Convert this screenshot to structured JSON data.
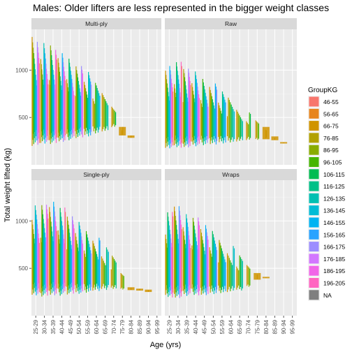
{
  "chart_data": {
    "type": "violin",
    "title": "Males: Older lifters are less represented in the bigger weight classes",
    "xlabel": "Age (yrs)",
    "ylabel": "Total weight lifted (kg)",
    "ylim": [
      0,
      1430
    ],
    "yticks": [
      500,
      1000
    ],
    "categories": [
      "25-29",
      "30-34",
      "35-39",
      "40-44",
      "45-49",
      "50-54",
      "55-59",
      "60-64",
      "65-69",
      "70-74",
      "75-79",
      "80-84",
      "85-89",
      "90-94",
      "95-99"
    ],
    "panels": [
      {
        "name": "Multi-ply",
        "groups": [
          {
            "age": "25-29",
            "min": 200,
            "max": 1350
          },
          {
            "age": "30-34",
            "min": 210,
            "max": 1310
          },
          {
            "age": "35-39",
            "min": 220,
            "max": 1260
          },
          {
            "age": "40-44",
            "min": 230,
            "max": 1200
          },
          {
            "age": "45-49",
            "min": 260,
            "max": 1120
          },
          {
            "age": "50-54",
            "min": 280,
            "max": 1060
          },
          {
            "age": "55-59",
            "min": 300,
            "max": 980
          },
          {
            "age": "60-64",
            "min": 330,
            "max": 880
          },
          {
            "age": "65-69",
            "min": 350,
            "max": 780
          },
          {
            "age": "70-74",
            "min": 390,
            "max": 680
          },
          {
            "age": "75-79",
            "min": 310,
            "max": 400
          },
          {
            "age": "80-84",
            "min": 285,
            "max": 310
          }
        ]
      },
      {
        "name": "Raw",
        "groups": [
          {
            "age": "25-29",
            "min": 170,
            "max": 1080
          },
          {
            "age": "30-34",
            "min": 180,
            "max": 1100
          },
          {
            "age": "35-39",
            "min": 180,
            "max": 1050
          },
          {
            "age": "40-44",
            "min": 190,
            "max": 1000
          },
          {
            "age": "45-49",
            "min": 200,
            "max": 940
          },
          {
            "age": "50-54",
            "min": 210,
            "max": 870
          },
          {
            "age": "55-59",
            "min": 220,
            "max": 800
          },
          {
            "age": "60-64",
            "min": 230,
            "max": 720
          },
          {
            "age": "65-69",
            "min": 240,
            "max": 640
          },
          {
            "age": "70-74",
            "min": 250,
            "max": 560
          },
          {
            "age": "75-79",
            "min": 260,
            "max": 480
          },
          {
            "age": "80-84",
            "min": 270,
            "max": 400
          },
          {
            "age": "85-89",
            "min": 260,
            "max": 300
          },
          {
            "age": "90-94",
            "min": 225,
            "max": 240
          }
        ]
      },
      {
        "name": "Single-ply",
        "groups": [
          {
            "age": "25-29",
            "min": 200,
            "max": 1200
          },
          {
            "age": "30-34",
            "min": 200,
            "max": 1180
          },
          {
            "age": "35-39",
            "min": 200,
            "max": 1240
          },
          {
            "age": "40-44",
            "min": 210,
            "max": 1150
          },
          {
            "age": "45-49",
            "min": 220,
            "max": 1080
          },
          {
            "age": "50-54",
            "min": 230,
            "max": 1000
          },
          {
            "age": "55-59",
            "min": 240,
            "max": 920
          },
          {
            "age": "60-64",
            "min": 260,
            "max": 830
          },
          {
            "age": "65-69",
            "min": 270,
            "max": 740
          },
          {
            "age": "70-74",
            "min": 280,
            "max": 640
          },
          {
            "age": "75-79",
            "min": 270,
            "max": 480
          },
          {
            "age": "80-84",
            "min": 270,
            "max": 300
          },
          {
            "age": "85-89",
            "min": 265,
            "max": 285
          },
          {
            "age": "90-94",
            "min": 250,
            "max": 275
          }
        ]
      },
      {
        "name": "Wraps",
        "groups": [
          {
            "age": "25-29",
            "min": 190,
            "max": 1120
          },
          {
            "age": "30-34",
            "min": 180,
            "max": 1160
          },
          {
            "age": "35-39",
            "min": 200,
            "max": 1100
          },
          {
            "age": "40-44",
            "min": 210,
            "max": 1040
          },
          {
            "age": "45-49",
            "min": 210,
            "max": 980
          },
          {
            "age": "50-54",
            "min": 220,
            "max": 900
          },
          {
            "age": "55-59",
            "min": 230,
            "max": 820
          },
          {
            "age": "60-64",
            "min": 240,
            "max": 740
          },
          {
            "age": "65-69",
            "min": 260,
            "max": 650
          },
          {
            "age": "70-74",
            "min": 300,
            "max": 550
          },
          {
            "age": "75-79",
            "min": 380,
            "max": 450
          },
          {
            "age": "80-84",
            "min": 395,
            "max": 410
          }
        ]
      }
    ],
    "legend": {
      "title": "GroupKG",
      "position": "right",
      "entries": [
        {
          "label": "46-55",
          "color": "#F8766D"
        },
        {
          "label": "56-65",
          "color": "#E7851E"
        },
        {
          "label": "66-75",
          "color": "#D09400"
        },
        {
          "label": "76-85",
          "color": "#B2A100"
        },
        {
          "label": "86-95",
          "color": "#89AC00"
        },
        {
          "label": "96-105",
          "color": "#45B500"
        },
        {
          "label": "106-115",
          "color": "#00BC51"
        },
        {
          "label": "116-125",
          "color": "#00C087"
        },
        {
          "label": "126-135",
          "color": "#00C0B2"
        },
        {
          "label": "136-145",
          "color": "#00BCD6"
        },
        {
          "label": "146-155",
          "color": "#00B3F2"
        },
        {
          "label": "156-165",
          "color": "#29A3FF"
        },
        {
          "label": "166-175",
          "color": "#9C8DFF"
        },
        {
          "label": "176-185",
          "color": "#D277FF"
        },
        {
          "label": "186-195",
          "color": "#F166E8"
        },
        {
          "label": "196-205",
          "color": "#FF65C1"
        },
        {
          "label": "NA",
          "color": "#7F7F7F"
        }
      ]
    },
    "grid": true,
    "panel_background": "#EBEBEB",
    "strip_background": "#D9D9D9"
  }
}
